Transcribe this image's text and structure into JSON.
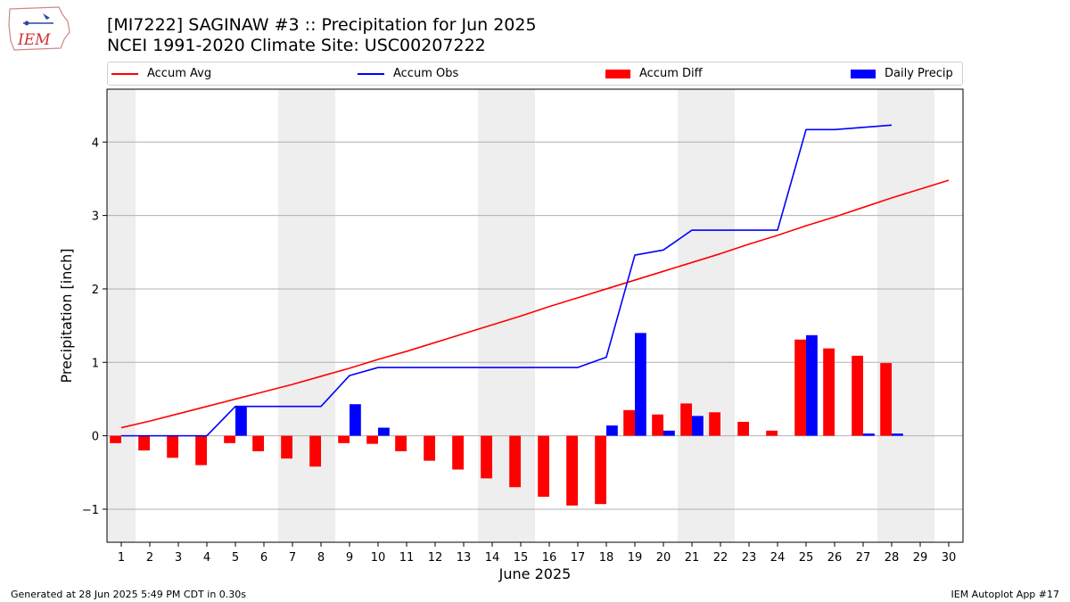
{
  "logo": {
    "text": "IEM"
  },
  "header": {
    "title": "[MI7222] SAGINAW #3 :: Precipitation for Jun 2025",
    "subtitle": "NCEI 1991-2020 Climate Site: USC00207222"
  },
  "legend": {
    "accum_avg": "Accum Avg",
    "accum_obs": "Accum Obs",
    "accum_diff": "Accum Diff",
    "daily_precip": "Daily Precip"
  },
  "colors": {
    "avg": "#ff0000",
    "obs": "#0000ff",
    "diff": "#ff0000",
    "daily": "#0000ff",
    "weekend_shade": "#eeeeee",
    "grid": "#b0b0b0"
  },
  "chart_data": {
    "type": "bar",
    "title": "[MI7222] SAGINAW #3 :: Precipitation for Jun 2025",
    "xlabel": "June 2025",
    "ylabel": "Precipitation [inch]",
    "x": [
      1,
      2,
      3,
      4,
      5,
      6,
      7,
      8,
      9,
      10,
      11,
      12,
      13,
      14,
      15,
      16,
      17,
      18,
      19,
      20,
      21,
      22,
      23,
      24,
      25,
      26,
      27,
      28,
      29,
      30
    ],
    "xlim": [
      0.5,
      30.5
    ],
    "ylim": [
      -1.45,
      4.72
    ],
    "yticks": [
      -1,
      0,
      1,
      2,
      3,
      4
    ],
    "ytick_labels": [
      "−1",
      "0",
      "1",
      "2",
      "3",
      "4"
    ],
    "grid": "horizontal",
    "legend_position": "top",
    "shaded_days": [
      1,
      7,
      8,
      14,
      15,
      21,
      22,
      28,
      29
    ],
    "series": [
      {
        "name": "Accum Avg",
        "type": "line",
        "values": [
          0.11,
          0.2,
          0.3,
          0.4,
          0.5,
          0.6,
          0.7,
          0.81,
          0.92,
          1.04,
          1.15,
          1.27,
          1.39,
          1.51,
          1.63,
          1.76,
          1.88,
          2.0,
          2.12,
          2.24,
          2.36,
          2.48,
          2.61,
          2.73,
          2.86,
          2.98,
          3.11,
          3.24,
          3.36,
          3.48
        ]
      },
      {
        "name": "Accum Obs",
        "type": "line",
        "values": [
          0.0,
          0.0,
          0.0,
          0.0,
          0.4,
          0.4,
          0.4,
          0.4,
          0.82,
          0.93,
          0.93,
          0.93,
          0.93,
          0.93,
          0.93,
          0.93,
          0.93,
          1.07,
          2.46,
          2.53,
          2.8,
          2.8,
          2.8,
          2.8,
          4.17,
          4.17,
          4.2,
          4.23,
          null,
          null
        ]
      },
      {
        "name": "Accum Diff",
        "type": "bar",
        "values": [
          -0.1,
          -0.2,
          -0.3,
          -0.4,
          -0.1,
          -0.21,
          -0.31,
          -0.42,
          -0.1,
          -0.11,
          -0.21,
          -0.34,
          -0.46,
          -0.58,
          -0.7,
          -0.83,
          -0.95,
          -0.93,
          0.35,
          0.29,
          0.44,
          0.32,
          0.19,
          0.07,
          1.31,
          1.19,
          1.09,
          0.99,
          null,
          null
        ]
      },
      {
        "name": "Daily Precip",
        "type": "bar",
        "values": [
          0,
          0,
          0,
          0,
          0.4,
          0,
          0,
          0,
          0.43,
          0.11,
          0,
          0,
          0,
          0,
          0,
          0,
          0,
          0.14,
          1.4,
          0.07,
          0.27,
          0,
          0,
          0,
          1.37,
          0,
          0.03,
          0.03,
          null,
          null
        ]
      }
    ]
  },
  "footer": {
    "generated": "Generated at 28 Jun 2025 5:49 PM CDT in 0.30s",
    "app": "IEM Autoplot App #17"
  }
}
